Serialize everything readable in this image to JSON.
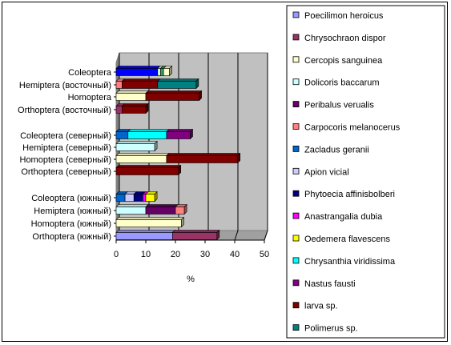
{
  "chart_data": {
    "type": "bar",
    "orientation": "horizontal",
    "stacked": true,
    "three_d": true,
    "xlabel": "%",
    "xlim": [
      0,
      50
    ],
    "xticks": [
      0,
      10,
      20,
      30,
      40,
      50
    ],
    "grid": true,
    "legend_position": "right",
    "categories": [
      "Orthoptera (южный)",
      "Homoptera (южный)",
      "Hemiptera (южный)",
      "Coleoptera (южный)",
      "",
      "Orthoptera (северный)",
      "Homoptera (северный)",
      "Hemiptera (северный)",
      "Coleoptera (северный)",
      "",
      "Orthoptera (восточный)",
      "Homoptera",
      "Hemiptera (восточный)",
      "Coleoptera"
    ],
    "series": [
      {
        "name": "Poecilimon heroicus",
        "color": "#9999ff",
        "values": [
          19,
          0,
          0,
          0,
          0,
          0,
          0,
          0,
          0,
          0,
          0,
          0,
          0,
          0
        ]
      },
      {
        "name": "Chrysochraon dispor",
        "color": "#993366",
        "values": [
          15,
          0,
          0,
          0,
          0,
          0,
          0,
          0,
          0,
          0,
          2,
          0,
          0,
          0
        ]
      },
      {
        "name": "Cercopis sanguinea",
        "color": "#ffffcc",
        "values": [
          0,
          22,
          0,
          0,
          0,
          0,
          17,
          0,
          0,
          0,
          0,
          10,
          0,
          0
        ]
      },
      {
        "name": "Dolicoris baccarum",
        "color": "#ccffff",
        "values": [
          0,
          0,
          10,
          0,
          0,
          0,
          0,
          13,
          0,
          0,
          0,
          0,
          0,
          0
        ]
      },
      {
        "name": "Peribalus verualis",
        "color": "#660066",
        "values": [
          0,
          0,
          10,
          0,
          0,
          0,
          0,
          0,
          0,
          0,
          0,
          0,
          0,
          0
        ]
      },
      {
        "name": "Carpocoris melanocerus",
        "color": "#ff8080",
        "values": [
          0,
          0,
          3,
          0,
          0,
          0,
          0,
          0,
          0,
          0,
          0,
          0,
          2,
          0
        ]
      },
      {
        "name": "Zacladus geranii",
        "color": "#0066cc",
        "values": [
          0,
          0,
          0,
          3,
          0,
          0,
          0,
          0,
          4,
          0,
          0,
          0,
          0,
          0
        ]
      },
      {
        "name": "Apion vicial",
        "color": "#ccccff",
        "values": [
          0,
          0,
          0,
          3,
          0,
          0,
          0,
          0,
          0,
          0,
          0,
          0,
          0,
          0
        ]
      },
      {
        "name": "Phytoecia affinisbolberi",
        "color": "#000080",
        "values": [
          0,
          0,
          0,
          3,
          0,
          0,
          0,
          0,
          0,
          0,
          0,
          0,
          0,
          0
        ]
      },
      {
        "name": "Anastrangalia dubia",
        "color": "#ff00ff",
        "values": [
          0,
          0,
          0,
          1,
          0,
          0,
          0,
          0,
          0,
          0,
          0,
          0,
          0,
          0
        ]
      },
      {
        "name": "Oedemera flavescens",
        "color": "#ffff00",
        "values": [
          0,
          0,
          0,
          3,
          0,
          0,
          0,
          0,
          0,
          0,
          0,
          0,
          0,
          0
        ]
      },
      {
        "name": "Chrysanthia viridissima",
        "color": "#00ffff",
        "values": [
          0,
          0,
          0,
          0,
          0,
          0,
          0,
          0,
          13,
          0,
          0,
          0,
          0,
          0
        ]
      },
      {
        "name": "Nastus fausti",
        "color": "#800080",
        "values": [
          0,
          0,
          0,
          0,
          0,
          0,
          0,
          0,
          8,
          0,
          0,
          0,
          0,
          0
        ]
      },
      {
        "name": "larva sp.",
        "color": "#800000",
        "values": [
          0,
          0,
          0,
          0,
          0,
          21,
          24,
          0,
          0,
          0,
          8,
          18,
          12,
          0
        ]
      },
      {
        "name": "Polimerus sp.",
        "color": "#008080",
        "values": [
          0,
          0,
          0,
          0,
          0,
          0,
          0,
          0,
          0,
          0,
          0,
          0,
          13,
          0
        ]
      },
      {
        "name": "",
        "color": "#0000ff",
        "values": [
          0,
          0,
          0,
          0,
          0,
          0,
          0,
          0,
          0,
          0,
          0,
          0,
          0,
          14
        ]
      },
      {
        "name": "",
        "color": "#ccffcc",
        "values": [
          0,
          0,
          0,
          0,
          0,
          0,
          0,
          0,
          0,
          0,
          0,
          0,
          0,
          1
        ]
      },
      {
        "name": "",
        "color": "#339966",
        "values": [
          0,
          0,
          0,
          0,
          0,
          0,
          0,
          0,
          0,
          0,
          0,
          0,
          0,
          1
        ]
      },
      {
        "name": "",
        "color": "#ffffcc",
        "values": [
          0,
          0,
          0,
          0,
          0,
          0,
          0,
          0,
          0,
          0,
          0,
          0,
          0,
          2
        ]
      }
    ]
  }
}
